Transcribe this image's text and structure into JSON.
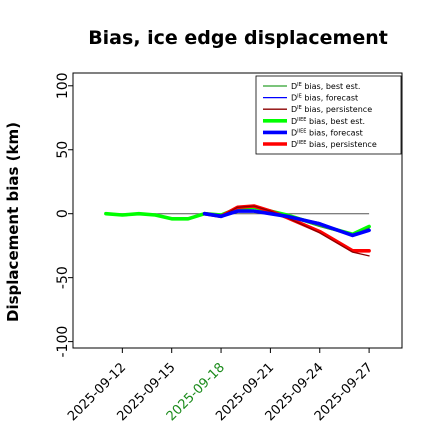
{
  "chart_data": {
    "type": "line",
    "title": "Bias, ice edge displacement",
    "xlabel": "",
    "ylabel": "Displacement bias (km)",
    "xlim": [
      "2025-09-09",
      "2025-09-29"
    ],
    "ylim": [
      -105,
      110
    ],
    "yticks": [
      -100,
      -50,
      0,
      50,
      100
    ],
    "ytick_labels": [
      "-100",
      "-50",
      "0",
      "50",
      "100"
    ],
    "xticks": [
      "2025-09-12",
      "2025-09-15",
      "2025-09-18",
      "2025-09-21",
      "2025-09-24",
      "2025-09-27"
    ],
    "highlight_xtick": "2025-09-18",
    "highlight_color": "#1a8a1a",
    "grid": false,
    "zero_line": true,
    "legend_position": "top-right",
    "series": [
      {
        "name": "D^IE bias, best est.",
        "legend_sup": "IE",
        "legend_rest": " bias, best est.",
        "color": "#2ca02c",
        "width": 1.3,
        "x": [
          "2025-09-17",
          "2025-09-18",
          "2025-09-19",
          "2025-09-20",
          "2025-09-21",
          "2025-09-22",
          "2025-09-24",
          "2025-09-26",
          "2025-09-27"
        ],
        "y": [
          0,
          -2,
          5,
          6,
          2,
          -2,
          -10,
          -17,
          -11
        ]
      },
      {
        "name": "D^IE bias, forecast",
        "legend_sup": "IE",
        "legend_rest": " bias, forecast",
        "color": "#0000ff",
        "width": 1.3,
        "x": [
          "2025-09-17",
          "2025-09-18",
          "2025-09-19",
          "2025-09-20",
          "2025-09-21",
          "2025-09-22",
          "2025-09-24",
          "2025-09-26",
          "2025-09-27"
        ],
        "y": [
          0,
          -3,
          2,
          2,
          0,
          -2,
          -7,
          -17,
          -12
        ]
      },
      {
        "name": "D^IE bias, persistence",
        "legend_sup": "IE",
        "legend_rest": " bias, persistence",
        "color": "#8b0000",
        "width": 1.3,
        "x": [
          "2025-09-17",
          "2025-09-18",
          "2025-09-19",
          "2025-09-20",
          "2025-09-21",
          "2025-09-22",
          "2025-09-24",
          "2025-09-26",
          "2025-09-27"
        ],
        "y": [
          0,
          -2,
          5,
          6,
          2,
          -3,
          -15,
          -30,
          -33
        ]
      },
      {
        "name": "D^IIEE bias, best est.",
        "legend_sup": "IIEE",
        "legend_rest": " bias, best est.",
        "color": "#00ff00",
        "width": 3.6,
        "x": [
          "2025-09-11",
          "2025-09-12",
          "2025-09-13",
          "2025-09-14",
          "2025-09-15",
          "2025-09-16",
          "2025-09-17",
          "2025-09-18",
          "2025-09-19",
          "2025-09-20",
          "2025-09-21",
          "2025-09-22",
          "2025-09-24",
          "2025-09-26",
          "2025-09-27"
        ],
        "y": [
          0,
          -1,
          0,
          -1,
          -4,
          -4,
          0,
          -1,
          4,
          5,
          2,
          -1,
          -9,
          -16,
          -10
        ]
      },
      {
        "name": "D^IIEE bias, forecast",
        "legend_sup": "IIEE",
        "legend_rest": " bias, forecast",
        "color": "#0000ff",
        "width": 3.6,
        "x": [
          "2025-09-17",
          "2025-09-18",
          "2025-09-19",
          "2025-09-20",
          "2025-09-21",
          "2025-09-22",
          "2025-09-24",
          "2025-09-26",
          "2025-09-27"
        ],
        "y": [
          0,
          -2,
          2,
          2,
          0,
          -2,
          -8,
          -17,
          -13
        ]
      },
      {
        "name": "D^IIEE bias, persistence",
        "legend_sup": "IIEE",
        "legend_rest": " bias, persistence",
        "color": "#ff0000",
        "width": 3.6,
        "x": [
          "2025-09-17",
          "2025-09-18",
          "2025-09-19",
          "2025-09-20",
          "2025-09-21",
          "2025-09-22",
          "2025-09-24",
          "2025-09-26",
          "2025-09-27"
        ],
        "y": [
          0,
          -2,
          5,
          6,
          2,
          -3,
          -14,
          -29,
          -29
        ]
      }
    ]
  }
}
